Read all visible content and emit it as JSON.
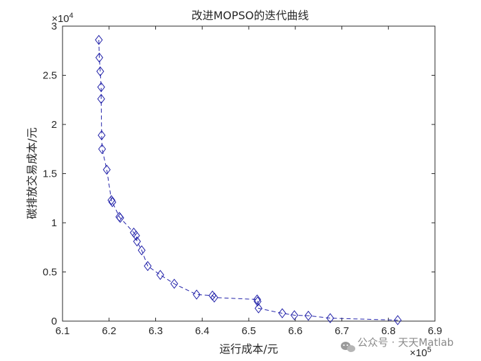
{
  "chart_data": {
    "type": "scatter",
    "title": "改进MOPSO的迭代曲线",
    "xlabel": "运行成本/元",
    "ylabel": "碳排放交易成本/元",
    "x_multiplier": "×10",
    "x_exponent": "5",
    "y_multiplier": "×10",
    "y_exponent": "4",
    "xlim": [
      6.1,
      6.9
    ],
    "ylim": [
      0,
      3
    ],
    "xticks": [
      "6.1",
      "6.2",
      "6.3",
      "6.4",
      "6.5",
      "6.6",
      "6.7",
      "6.8",
      "6.9"
    ],
    "yticks": [
      "0",
      "0.5",
      "1",
      "1.5",
      "2",
      "2.5",
      "3"
    ],
    "grid": false,
    "series": [
      {
        "marker": "diamond",
        "line": "dashed",
        "color": "#1f1fa8",
        "points": [
          {
            "x": 6.178,
            "y": 2.86
          },
          {
            "x": 6.179,
            "y": 2.68
          },
          {
            "x": 6.181,
            "y": 2.54
          },
          {
            "x": 6.183,
            "y": 2.38
          },
          {
            "x": 6.183,
            "y": 2.26
          },
          {
            "x": 6.184,
            "y": 1.89
          },
          {
            "x": 6.185,
            "y": 1.75
          },
          {
            "x": 6.195,
            "y": 1.54
          },
          {
            "x": 6.205,
            "y": 1.23
          },
          {
            "x": 6.207,
            "y": 1.21
          },
          {
            "x": 6.222,
            "y": 1.06
          },
          {
            "x": 6.224,
            "y": 1.05
          },
          {
            "x": 6.253,
            "y": 0.9
          },
          {
            "x": 6.258,
            "y": 0.87
          },
          {
            "x": 6.26,
            "y": 0.81
          },
          {
            "x": 6.27,
            "y": 0.72
          },
          {
            "x": 6.283,
            "y": 0.56
          },
          {
            "x": 6.31,
            "y": 0.47
          },
          {
            "x": 6.34,
            "y": 0.38
          },
          {
            "x": 6.388,
            "y": 0.27
          },
          {
            "x": 6.422,
            "y": 0.26
          },
          {
            "x": 6.426,
            "y": 0.24
          },
          {
            "x": 6.518,
            "y": 0.22
          },
          {
            "x": 6.519,
            "y": 0.2
          },
          {
            "x": 6.521,
            "y": 0.13
          },
          {
            "x": 6.572,
            "y": 0.08
          },
          {
            "x": 6.598,
            "y": 0.06
          },
          {
            "x": 6.628,
            "y": 0.055
          },
          {
            "x": 6.675,
            "y": 0.03
          },
          {
            "x": 6.82,
            "y": 0.01
          }
        ]
      }
    ]
  },
  "watermark": {
    "icon": "wechat-icon",
    "text": "公众号 · 天天Matlab"
  }
}
